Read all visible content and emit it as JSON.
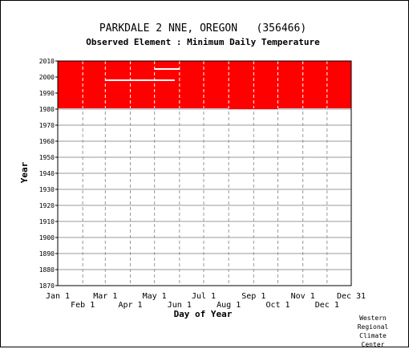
{
  "chart_data": {
    "type": "heatmap",
    "title": "PARKDALE 2 NNE, OREGON   (356466)",
    "subtitle": "Observed Element : Minimum Daily Temperature",
    "xlabel": "Day of Year",
    "ylabel": "Year",
    "x_ticks_top_row": [
      "Jan 1",
      "Mar 1",
      "May 1",
      "Jul 1",
      "Sep 1",
      "Nov 1",
      "Dec 31"
    ],
    "x_ticks_bottom_row": [
      "Feb 1",
      "Apr 1",
      "Jun 1",
      "Aug 1",
      "Oct 1",
      "Dec 1"
    ],
    "y_ticks": [
      "1870",
      "1880",
      "1890",
      "1900",
      "1910",
      "1920",
      "1930",
      "1940",
      "1950",
      "1960",
      "1970",
      "1980",
      "1990",
      "2000",
      "2010"
    ],
    "xlim": [
      1,
      365
    ],
    "ylim": [
      1870,
      2010
    ],
    "grid": true,
    "data_color": "#ff0000",
    "observed_period": {
      "start_day": 1,
      "end_day": 365,
      "start_year": 1980.5,
      "end_year": 2010
    },
    "missing_segments": [
      {
        "year": 1998,
        "start_day": 60,
        "end_day": 91
      },
      {
        "year": 1998,
        "start_day": 91,
        "end_day": 146
      },
      {
        "year": 2005,
        "start_day": 121,
        "end_day": 152
      }
    ],
    "extra_observed": [
      {
        "start_day": 213,
        "end_day": 274,
        "start_year": 1980,
        "end_year": 1980.5
      }
    ]
  },
  "credit": [
    "Western",
    "Regional",
    "Climate",
    "Center"
  ]
}
